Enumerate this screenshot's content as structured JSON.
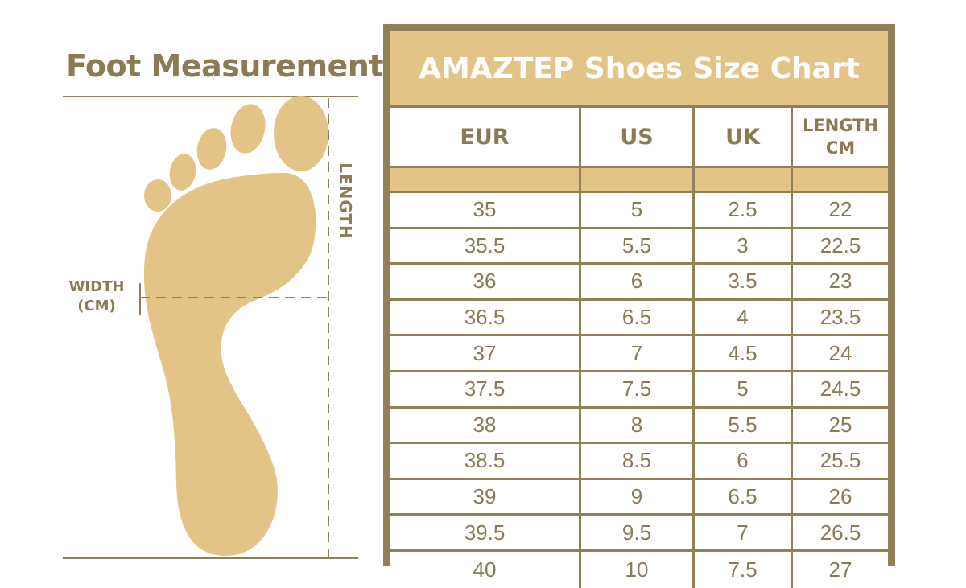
{
  "foot_measurement": {
    "title": "Foot Measurement",
    "length_label": "LENGTH",
    "width_label_line1": "WIDTH",
    "width_label_line2": "(CM)"
  },
  "size_chart": {
    "title": "AMAZTEP Shoes Size Chart",
    "columns": [
      "EUR",
      "US",
      "UK",
      "LENGTH CM"
    ],
    "column_lines": [
      [
        "EUR"
      ],
      [
        "US"
      ],
      [
        "UK"
      ],
      [
        "LENGTH",
        "CM"
      ]
    ],
    "rows": [
      [
        "35",
        "5",
        "2.5",
        "22"
      ],
      [
        "35.5",
        "5.5",
        "3",
        "22.5"
      ],
      [
        "36",
        "6",
        "3.5",
        "23"
      ],
      [
        "36.5",
        "6.5",
        "4",
        "23.5"
      ],
      [
        "37",
        "7",
        "4.5",
        "24"
      ],
      [
        "37.5",
        "7.5",
        "5",
        "24.5"
      ],
      [
        "38",
        "8",
        "5.5",
        "25"
      ],
      [
        "38.5",
        "8.5",
        "6",
        "25.5"
      ],
      [
        "39",
        "9",
        "6.5",
        "26"
      ],
      [
        "39.5",
        "9.5",
        "7",
        "26.5"
      ],
      [
        "40",
        "10",
        "7.5",
        "27"
      ]
    ]
  },
  "colors": {
    "accent_tan": "#e3c486",
    "border_brown": "#8f8058",
    "text_brown": "#8a7a55"
  }
}
